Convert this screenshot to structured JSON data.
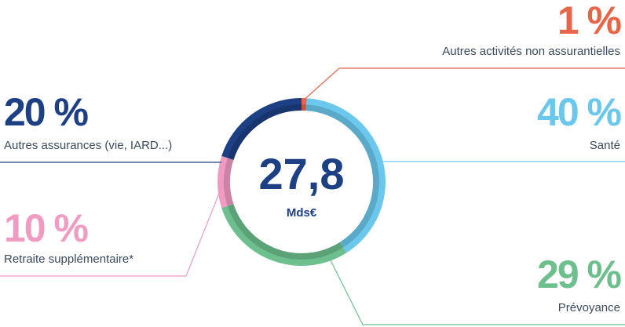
{
  "chart_data": {
    "type": "donut",
    "center_label": "27,8",
    "center_unit": "Mds€",
    "categories": [
      "Autres activités non assurantielles",
      "Santé",
      "Prévoyance",
      "Retraite supplémentaire*",
      "Autres assurances (vie, IARD...)"
    ],
    "values": [
      1,
      40,
      29,
      10,
      20
    ],
    "value_labels": [
      "1 %",
      "40 %",
      "29 %",
      "10 %",
      "20 %"
    ],
    "colors": [
      "#e8654a",
      "#6cc7ec",
      "#6dbf8e",
      "#f09bc2",
      "#1d3f84"
    ]
  }
}
